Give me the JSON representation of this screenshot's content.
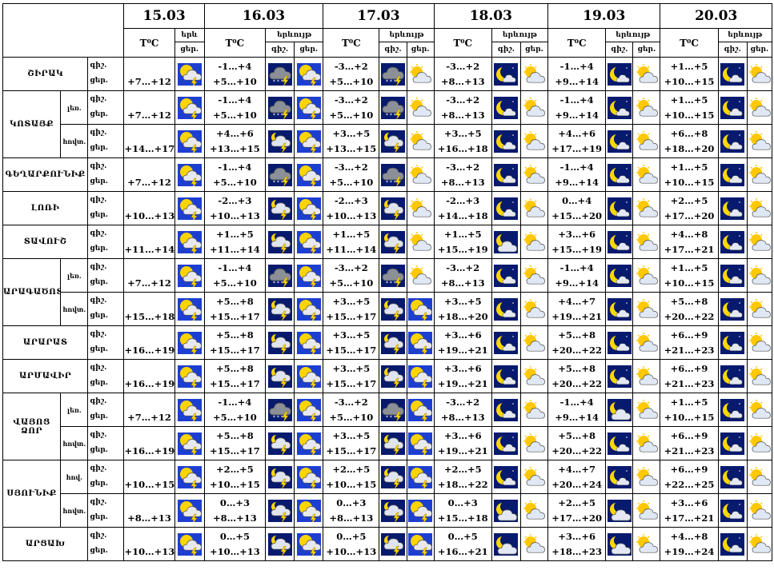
{
  "header": {
    "dates": [
      "15.03",
      "16.03",
      "17.03",
      "18.03",
      "19.03",
      "20.03"
    ],
    "temp_label": "T⁰C",
    "phen_label": "երևույթ",
    "phen_label_short": "երև",
    "night": "գիշ.",
    "day": "ցեր."
  },
  "regions": [
    {
      "name": "ՇԻՐԱԿ",
      "zones": [
        {
          "zone": "",
          "temps": [
            [
              "",
              "+7…+12"
            ],
            [
              "-1…+4",
              "+5…+10"
            ],
            [
              "-3…+2",
              "+5…+10"
            ],
            [
              "-3…+2",
              "+8…+13"
            ],
            [
              "-1…+4",
              "+9…+14"
            ],
            [
              "+1…+5",
              "+10…+15"
            ]
          ],
          "icons": [
            [
              "pcloud-storm"
            ],
            [
              "night-storm-snow",
              "pcloud-storm"
            ],
            [
              "night-storm-snow",
              "sun-cloud"
            ],
            [
              "moon",
              "sun-cloud"
            ],
            [
              "moon",
              "sun-cloud"
            ],
            [
              "moon",
              "sun-cloud"
            ]
          ]
        }
      ]
    },
    {
      "name": "ԿՈՏԱՅՔ",
      "zones": [
        {
          "zone": "լեռ.",
          "temps": [
            [
              "",
              "+7…+12"
            ],
            [
              "-1…+4",
              "+5…+10"
            ],
            [
              "-3…+2",
              "+5…+10"
            ],
            [
              "-3…+2",
              "+8…+13"
            ],
            [
              "-1…+4",
              "+9…+14"
            ],
            [
              "+1…+5",
              "+10…+15"
            ]
          ],
          "icons": [
            [
              "pcloud-storm"
            ],
            [
              "night-storm-snow",
              "pcloud-storm"
            ],
            [
              "night-storm-snow",
              "sun-cloud"
            ],
            [
              "moon",
              "sun-cloud"
            ],
            [
              "moon",
              "sun-cloud"
            ],
            [
              "moon",
              "sun-cloud"
            ]
          ]
        },
        {
          "zone": "հովտ.",
          "temps": [
            [
              "",
              "+14…+17"
            ],
            [
              "+4…+6",
              "+13…+15"
            ],
            [
              "+3…+5",
              "+13…+15"
            ],
            [
              "+3…+5",
              "+16…+18"
            ],
            [
              "+4…+6",
              "+17…+19"
            ],
            [
              "+6…+8",
              "+18…+20"
            ]
          ],
          "icons": [
            [
              "pcloud-storm"
            ],
            [
              "night-storm",
              "pcloud-storm"
            ],
            [
              "night-storm",
              "sun-cloud"
            ],
            [
              "moon",
              "sun-cloud"
            ],
            [
              "moon",
              "sun-cloud"
            ],
            [
              "moon",
              "sun-cloud"
            ]
          ]
        }
      ]
    },
    {
      "name": "ԳԵՂԱՐՔՈՒՆԻՔ",
      "zones": [
        {
          "zone": "",
          "temps": [
            [
              "",
              "+7…+12"
            ],
            [
              "-1…+4",
              "+5…+10"
            ],
            [
              "-3…+2",
              "+5…+10"
            ],
            [
              "-3…+2",
              "+8…+13"
            ],
            [
              "-1…+4",
              "+9…+14"
            ],
            [
              "+1…+5",
              "+10…+15"
            ]
          ],
          "icons": [
            [
              "pcloud-storm"
            ],
            [
              "night-storm-snow",
              "pcloud-storm"
            ],
            [
              "night-storm-snow",
              "sun-cloud"
            ],
            [
              "moon",
              "sun-cloud"
            ],
            [
              "moon",
              "sun-cloud"
            ],
            [
              "moon",
              "sun-cloud"
            ]
          ]
        }
      ]
    },
    {
      "name": "ԼՈՌԻ",
      "zones": [
        {
          "zone": "",
          "temps": [
            [
              "",
              "+10…+13"
            ],
            [
              "-2…+3",
              "+10…+13"
            ],
            [
              "-2…+3",
              "+10…+13"
            ],
            [
              "-2…+3",
              "+14…+18"
            ],
            [
              "0…+4",
              "+15…+20"
            ],
            [
              "+2…+5",
              "+17…+20"
            ]
          ],
          "icons": [
            [
              "pcloud-storm"
            ],
            [
              "night-storm",
              "pcloud-storm"
            ],
            [
              "night-storm",
              "sun-cloud"
            ],
            [
              "moon",
              "sun-cloud"
            ],
            [
              "moon",
              "sun-cloud"
            ],
            [
              "moon",
              "sun-cloud"
            ]
          ]
        }
      ]
    },
    {
      "name": "ՏԱՎՈՒՇ",
      "zones": [
        {
          "zone": "",
          "temps": [
            [
              "",
              "+11…+14"
            ],
            [
              "+1…+5",
              "+11…+14"
            ],
            [
              "+1…+5",
              "+11…+14"
            ],
            [
              "+1…+5",
              "+15…+19"
            ],
            [
              "+3…+6",
              "+15…+19"
            ],
            [
              "+4…+8",
              "+17…+21"
            ]
          ],
          "icons": [
            [
              "pcloud-storm"
            ],
            [
              "night-storm",
              "pcloud-storm"
            ],
            [
              "night-storm",
              "sun-cloud"
            ],
            [
              "moon-cloud",
              "sun-cloud"
            ],
            [
              "moon",
              "sun-cloud"
            ],
            [
              "moon",
              "sun-cloud"
            ]
          ]
        }
      ]
    },
    {
      "name": "ԱՐԱԳԱԾՈՏՆ",
      "zones": [
        {
          "zone": "լեռ.",
          "temps": [
            [
              "",
              "+7…+12"
            ],
            [
              "-1…+4",
              "+5…+10"
            ],
            [
              "-3…+2",
              "+5…+10"
            ],
            [
              "-3…+2",
              "+8…+13"
            ],
            [
              "-1…+4",
              "+9…+14"
            ],
            [
              "+1…+5",
              "+10…+15"
            ]
          ],
          "icons": [
            [
              "pcloud-storm"
            ],
            [
              "night-storm-snow",
              "pcloud-storm"
            ],
            [
              "night-storm-snow",
              "sun-cloud"
            ],
            [
              "moon",
              "sun-cloud"
            ],
            [
              "moon",
              "sun-cloud"
            ],
            [
              "moon",
              "sun-cloud"
            ]
          ]
        },
        {
          "zone": "հովտ.",
          "temps": [
            [
              "",
              "+15…+18"
            ],
            [
              "+5…+8",
              "+15…+17"
            ],
            [
              "+3…+5",
              "+15…+17"
            ],
            [
              "+3…+5",
              "+18…+20"
            ],
            [
              "+4…+7",
              "+19…+21"
            ],
            [
              "+5…+8",
              "+20…+22"
            ]
          ],
          "icons": [
            [
              "pcloud-storm"
            ],
            [
              "night-storm",
              "pcloud-storm"
            ],
            [
              "night-storm",
              "pcloud-storm"
            ],
            [
              "moon",
              "sun-cloud"
            ],
            [
              "moon",
              "sun-cloud"
            ],
            [
              "moon",
              "sun-cloud"
            ]
          ]
        }
      ]
    },
    {
      "name": "ԱՐԱՐԱՏ",
      "zones": [
        {
          "zone": "",
          "temps": [
            [
              "",
              "+16…+19"
            ],
            [
              "+5…+8",
              "+15…+17"
            ],
            [
              "+3…+5",
              "+15…+17"
            ],
            [
              "+3…+6",
              "+19…+21"
            ],
            [
              "+5…+8",
              "+20…+22"
            ],
            [
              "+6…+9",
              "+21…+23"
            ]
          ],
          "icons": [
            [
              "pcloud-storm"
            ],
            [
              "night-storm",
              "pcloud-storm"
            ],
            [
              "night-storm",
              "pcloud-storm"
            ],
            [
              "moon",
              "sun-cloud"
            ],
            [
              "moon",
              "sun-cloud"
            ],
            [
              "moon",
              "sun-cloud"
            ]
          ]
        }
      ]
    },
    {
      "name": "ԱՐՄԱՎԻՐ",
      "zones": [
        {
          "zone": "",
          "temps": [
            [
              "",
              "+16…+19"
            ],
            [
              "+5…+8",
              "+15…+17"
            ],
            [
              "+3…+5",
              "+15…+17"
            ],
            [
              "+3…+6",
              "+19…+21"
            ],
            [
              "+5…+8",
              "+20…+22"
            ],
            [
              "+6…+9",
              "+21…+23"
            ]
          ],
          "icons": [
            [
              "pcloud-storm"
            ],
            [
              "night-storm",
              "pcloud-storm"
            ],
            [
              "night-storm",
              "pcloud-storm"
            ],
            [
              "moon",
              "sun-cloud"
            ],
            [
              "moon",
              "sun-cloud"
            ],
            [
              "moon",
              "sun-cloud"
            ]
          ]
        }
      ]
    },
    {
      "name": "ՎԱՅՈՑ ՁՈՐ",
      "zones": [
        {
          "zone": "լեռ.",
          "temps": [
            [
              "",
              "+7…+12"
            ],
            [
              "-1…+4",
              "+5…+10"
            ],
            [
              "-3…+2",
              "+5…+10"
            ],
            [
              "-3…+2",
              "+8…+13"
            ],
            [
              "-1…+4",
              "+9…+14"
            ],
            [
              "+1…+5",
              "+10…+15"
            ]
          ],
          "icons": [
            [
              "pcloud-storm"
            ],
            [
              "night-storm-snow",
              "pcloud-storm"
            ],
            [
              "night-storm-snow",
              "pcloud-storm"
            ],
            [
              "moon",
              "sun-cloud"
            ],
            [
              "moon-cloud",
              "sun-cloud"
            ],
            [
              "moon",
              "sun-cloud"
            ]
          ]
        },
        {
          "zone": "հովտ.",
          "temps": [
            [
              "",
              "+16…+19"
            ],
            [
              "+5…+8",
              "+15…+17"
            ],
            [
              "+3…+5",
              "+15…+17"
            ],
            [
              "+3…+6",
              "+19…+21"
            ],
            [
              "+5…+8",
              "+20…+22"
            ],
            [
              "+6…+9",
              "+21…+23"
            ]
          ],
          "icons": [
            [
              "pcloud-storm"
            ],
            [
              "night-storm",
              "pcloud-storm"
            ],
            [
              "night-storm",
              "pcloud-storm"
            ],
            [
              "moon",
              "sun-cloud"
            ],
            [
              "moon",
              "sun-cloud"
            ],
            [
              "moon",
              "sun-cloud"
            ]
          ]
        }
      ]
    },
    {
      "name": "ՍՅՈՒՆԻՔ",
      "zones": [
        {
          "zone": "հով.",
          "temps": [
            [
              "",
              "+10…+15"
            ],
            [
              "+2…+5",
              "+10…+15"
            ],
            [
              "+2…+5",
              "+10…+15"
            ],
            [
              "+2…+5",
              "+18…+22"
            ],
            [
              "+4…+7",
              "+20…+24"
            ],
            [
              "+6…+9",
              "+22…+25"
            ]
          ],
          "icons": [
            [
              "pcloud-storm"
            ],
            [
              "night-storm",
              "pcloud-storm"
            ],
            [
              "night-storm",
              "pcloud-storm"
            ],
            [
              "moon",
              "sun-cloud"
            ],
            [
              "moon",
              "sun-cloud"
            ],
            [
              "moon",
              "sun-cloud"
            ]
          ]
        },
        {
          "zone": "հովտ.",
          "temps": [
            [
              "",
              "+8…+13"
            ],
            [
              "0…+3",
              "+8…+13"
            ],
            [
              "0…+3",
              "+8…+13"
            ],
            [
              "0…+3",
              "+15…+18"
            ],
            [
              "+2…+5",
              "+17…+20"
            ],
            [
              "+3…+6",
              "+17…+21"
            ]
          ],
          "icons": [
            [
              "pcloud-storm"
            ],
            [
              "night-storm",
              "pcloud-storm"
            ],
            [
              "night-storm",
              "pcloud-storm"
            ],
            [
              "moon-cloud",
              "sun-cloud"
            ],
            [
              "moon-cloud",
              "sun-cloud"
            ],
            [
              "moon",
              "sun-cloud"
            ]
          ]
        }
      ]
    },
    {
      "name": "ԱՐՑԱԽ",
      "zones": [
        {
          "zone": "",
          "temps": [
            [
              "",
              "+10…+13"
            ],
            [
              "0…+5",
              "+10…+13"
            ],
            [
              "0…+5",
              "+10…+13"
            ],
            [
              "0…+5",
              "+16…+21"
            ],
            [
              "+3…+6",
              "+18…+23"
            ],
            [
              "+4…+8",
              "+19…+24"
            ]
          ],
          "icons": [
            [
              "pcloud-storm"
            ],
            [
              "night-storm",
              "pcloud-storm"
            ],
            [
              "night-storm",
              "pcloud-storm"
            ],
            [
              "moon-cloud",
              "sun-cloud"
            ],
            [
              "moon-cloud",
              "sun-cloud"
            ],
            [
              "moon",
              "sun-cloud"
            ]
          ]
        }
      ]
    }
  ]
}
